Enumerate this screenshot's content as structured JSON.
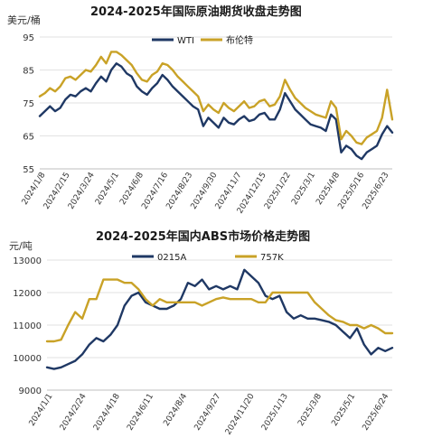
{
  "chart_data": [
    {
      "type": "line",
      "title": "2024-2025年国际原油期货收盘走势图",
      "ylabel": "美元/桶",
      "ylim": [
        55,
        95
      ],
      "yticks": [
        "95",
        "85",
        "75",
        "65",
        "55"
      ],
      "grid": "horizontal",
      "legend_position": "top-right",
      "x_tick_labels": [
        "2024/1/8",
        "2024/2/15",
        "2024/3/24",
        "2024/5/1",
        "2024/6/8",
        "2024/7/16",
        "2024/8/23",
        "2024/9/30",
        "2024/11/7",
        "2024/12/15",
        "2025/1/22",
        "2025/3/1",
        "2025/4/8",
        "2025/5/16",
        "2025/6/23"
      ],
      "series": [
        {
          "name": "WTI",
          "color": "#1f3864",
          "values": [
            71.0,
            72.5,
            74.0,
            72.5,
            73.5,
            76.0,
            77.5,
            77.0,
            78.5,
            79.5,
            78.5,
            81.0,
            83.0,
            81.5,
            85.0,
            87.0,
            86.0,
            84.0,
            83.0,
            80.0,
            78.5,
            77.5,
            79.5,
            81.0,
            83.5,
            82.0,
            80.0,
            78.5,
            77.0,
            75.5,
            74.0,
            73.0,
            68.0,
            70.5,
            69.0,
            67.5,
            70.5,
            69.0,
            68.5,
            70.0,
            71.0,
            69.5,
            70.0,
            71.5,
            72.0,
            70.0,
            70.0,
            73.0,
            78.0,
            75.5,
            73.0,
            71.5,
            70.0,
            68.5,
            68.0,
            67.5,
            66.5,
            71.5,
            70.0,
            60.0,
            62.0,
            61.0,
            59.0,
            58.0,
            60.0,
            61.0,
            62.0,
            65.5,
            68.0,
            66.0
          ]
        },
        {
          "name": "布伦特",
          "color": "#c9a227",
          "values": [
            77.0,
            78.0,
            79.5,
            78.5,
            80.0,
            82.5,
            83.0,
            82.0,
            83.5,
            85.0,
            84.5,
            86.5,
            89.0,
            87.0,
            90.5,
            90.5,
            89.5,
            88.0,
            86.5,
            84.0,
            82.0,
            81.5,
            83.5,
            84.5,
            87.0,
            86.5,
            85.0,
            83.0,
            81.5,
            80.0,
            78.5,
            77.0,
            72.5,
            74.5,
            73.0,
            72.0,
            75.0,
            73.5,
            72.5,
            74.0,
            75.5,
            73.5,
            74.0,
            75.5,
            76.0,
            74.0,
            74.5,
            77.0,
            82.0,
            79.0,
            76.5,
            75.0,
            73.5,
            72.5,
            71.5,
            71.0,
            70.5,
            75.5,
            73.5,
            64.0,
            66.5,
            65.0,
            63.0,
            62.5,
            64.5,
            65.5,
            66.5,
            70.5,
            79.0,
            70.0
          ]
        }
      ]
    },
    {
      "type": "line",
      "title": "2024-2025年国内ABS市场价格走势图",
      "ylabel": "元/吨",
      "ylim": [
        9000,
        13000
      ],
      "yticks": [
        "13000",
        "12000",
        "11000",
        "10000",
        "9000"
      ],
      "grid": "horizontal",
      "legend_position": "top-center",
      "x_tick_labels": [
        "2024/1/1",
        "2024/2/24",
        "2024/4/18",
        "2024/6/11",
        "2024/8/4",
        "2024/9/27",
        "2024/11/20",
        "2025/1/13",
        "2025/3/8",
        "2025/5/1",
        "2025/6/24"
      ],
      "series": [
        {
          "name": "0215A",
          "color": "#1f3864",
          "values": [
            9700,
            9650,
            9700,
            9800,
            9900,
            10100,
            10400,
            10600,
            10500,
            10700,
            11000,
            11600,
            11900,
            12000,
            11700,
            11600,
            11500,
            11500,
            11600,
            11800,
            12300,
            12200,
            12400,
            12100,
            12200,
            12100,
            12200,
            12100,
            12700,
            12500,
            12300,
            11900,
            11800,
            11900,
            11400,
            11200,
            11300,
            11200,
            11200,
            11150,
            11100,
            11000,
            10800,
            10600,
            10900,
            10400,
            10100,
            10300,
            10200,
            10300
          ]
        },
        {
          "name": "757K",
          "color": "#c9a227",
          "values": [
            10500,
            10500,
            10550,
            11000,
            11400,
            11200,
            11800,
            11800,
            12400,
            12400,
            12400,
            12300,
            12300,
            12100,
            11800,
            11600,
            11800,
            11700,
            11700,
            11700,
            11700,
            11700,
            11600,
            11700,
            11800,
            11850,
            11800,
            11800,
            11800,
            11800,
            11700,
            11700,
            12000,
            12000,
            12000,
            12000,
            12000,
            12000,
            11700,
            11500,
            11300,
            11150,
            11100,
            11000,
            11000,
            10900,
            11000,
            10900,
            10750,
            10750
          ]
        }
      ]
    }
  ]
}
